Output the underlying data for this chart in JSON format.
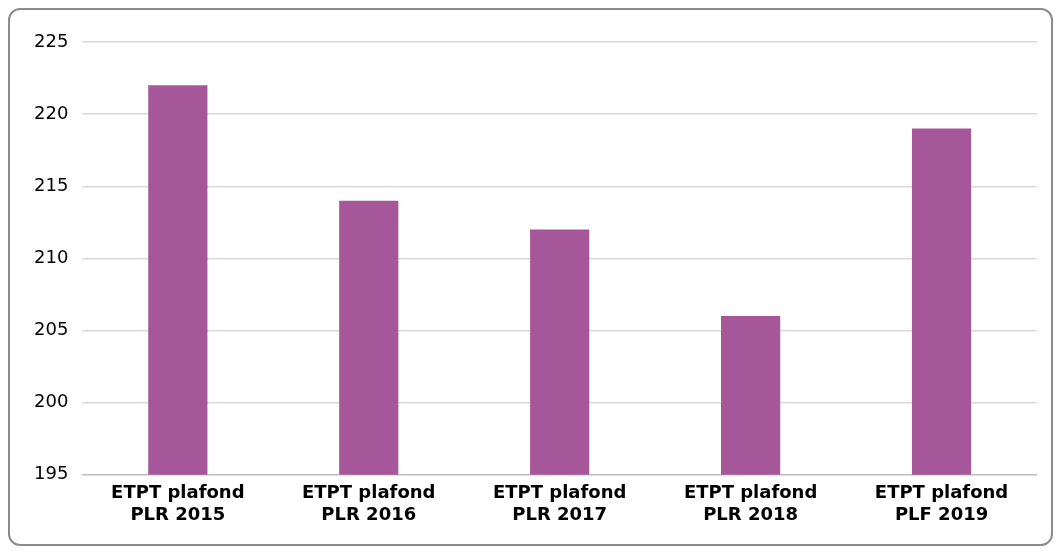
{
  "chart_data": {
    "type": "bar",
    "categories": [
      "ETPT plafond PLR 2015",
      "ETPT plafond PLR 2016",
      "ETPT plafond PLR 2017",
      "ETPT plafond PLR 2018",
      "ETPT plafond PLF 2019"
    ],
    "values": [
      222,
      214,
      212,
      206,
      219
    ],
    "color": "#a5579a",
    "ylim": [
      195,
      225
    ],
    "yticks": [
      195,
      200,
      205,
      210,
      215,
      220,
      225
    ],
    "grid": "y",
    "legend": false
  }
}
